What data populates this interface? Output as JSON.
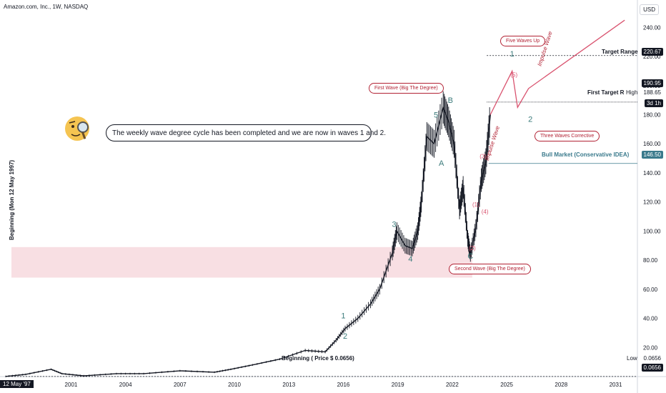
{
  "title": "Amazon.com, Inc., 1W, NASDAQ",
  "currency": "USD",
  "note": "The weekly wave degree cycle has been completed and we are now in waves 1 and 2.",
  "tags": {
    "five_waves_up": "Five Waves Up",
    "first_wave": "First Wave (Big The Degree)",
    "second_wave": "Second Wave (Big The Degree)",
    "three_waves": "Three Waves Corrective"
  },
  "levels": {
    "target_range": {
      "label": "Target Range",
      "price": "220.67"
    },
    "first_target": {
      "label": "First Target R",
      "price": "190.95"
    },
    "high": {
      "label": "High",
      "price": "188.65"
    },
    "countdown": "3d 1h",
    "bull_market": {
      "label": "Bull Market (Conservative IDEA)",
      "price": "146.50"
    },
    "beginning": {
      "label": "Beginning ( Price $ 0.0656)",
      "low_label": "Low",
      "price": "0.0656",
      "price2": "0.0656"
    }
  },
  "ylabel": "Beginning (Mon 12 May 1997)",
  "date_marker": "12 May '97",
  "chart_data": {
    "type": "line",
    "title": "Amazon.com, Inc., 1W, NASDAQ",
    "ylabel": "Beginning (Mon 12 May 1997)",
    "y_ticks": [
      20,
      40,
      60,
      80,
      100,
      120,
      140,
      160,
      180,
      200,
      220,
      240
    ],
    "x_ticks": [
      "2001",
      "2004",
      "2007",
      "2010",
      "2013",
      "2016",
      "2019",
      "2022",
      "2025",
      "2028",
      "2031"
    ],
    "ylim": [
      0,
      250
    ],
    "xlim": [
      1997.4,
      2032.2
    ],
    "series": [
      {
        "x": [
          1997.4,
          1998.5,
          1999.9,
          2000.5,
          2001.7,
          2003.5,
          2005.0,
          2007.0,
          2008.9,
          2009.8,
          2011.0,
          2012.5,
          2013.9,
          2015.0,
          2015.6,
          2016.1,
          2016.8,
          2017.5,
          2018.0,
          2018.7,
          2018.95,
          2019.4,
          2019.8,
          2020.1,
          2020.3,
          2020.6,
          2021.0,
          2021.5,
          2021.8,
          2022.1,
          2022.4,
          2022.6,
          2022.85,
          2023.0,
          2023.3,
          2023.6,
          2023.85,
          2024.1
        ],
        "y": [
          0.1,
          1.5,
          5.0,
          2.0,
          0.5,
          2.0,
          2.0,
          4.0,
          3.0,
          5.0,
          8.0,
          12.0,
          18.0,
          17.0,
          25.0,
          33.0,
          40.0,
          50.0,
          60.0,
          85.0,
          100.0,
          90.0,
          88.0,
          100.0,
          120.0,
          165.0,
          160.0,
          185.0,
          175.0,
          160.0,
          115.0,
          130.0,
          95.0,
          84.0,
          102.0,
          135.0,
          148.0,
          180.0
        ]
      }
    ],
    "projection": {
      "x": [
        2024.1,
        2025.3,
        2025.6,
        2026.2,
        2031.5
      ],
      "y": [
        180,
        210,
        185,
        198,
        245
      ]
    },
    "wave_labels": [
      {
        "text": "1",
        "x": 2016.0,
        "y": 40
      },
      {
        "text": "2",
        "x": 2016.1,
        "y": 26
      },
      {
        "text": "3",
        "x": 2018.8,
        "y": 103
      },
      {
        "text": "4",
        "x": 2019.7,
        "y": 79
      },
      {
        "text": "5",
        "x": 2021.1,
        "y": 178
      },
      {
        "text": "A",
        "x": 2021.4,
        "y": 145
      },
      {
        "text": "B",
        "x": 2021.9,
        "y": 188
      },
      {
        "text": "C",
        "x": 2023.0,
        "y": 81
      },
      {
        "text": "(1)",
        "x": 2023.3,
        "y": 117
      },
      {
        "text": "(2)",
        "x": 2023.1,
        "y": 87
      },
      {
        "text": "(3)",
        "x": 2023.7,
        "y": 150
      },
      {
        "text": "(4)",
        "x": 2023.8,
        "y": 112
      },
      {
        "text": "(5)",
        "x": 2025.4,
        "y": 206
      },
      {
        "text": "1",
        "x": 2025.3,
        "y": 220
      },
      {
        "text": "2",
        "x": 2026.3,
        "y": 175
      },
      {
        "text": "Impulse Wave",
        "x": 2024.3,
        "y": 160
      },
      {
        "text": "Impulse Wave",
        "x": 2027.2,
        "y": 225
      }
    ],
    "zone": {
      "y_from": 68,
      "y_to": 89
    }
  }
}
